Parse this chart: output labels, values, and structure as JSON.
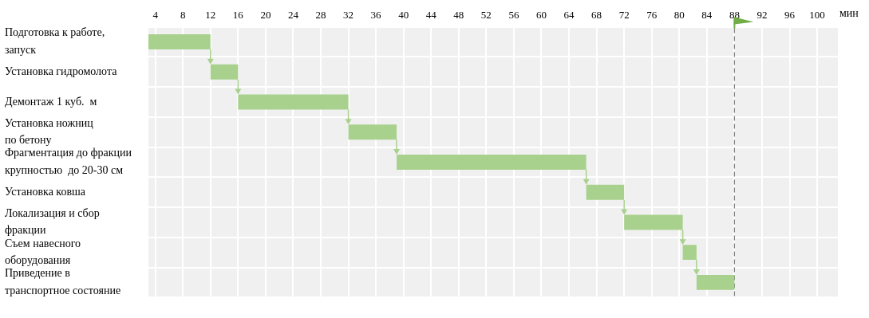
{
  "chart_data": {
    "type": "bar",
    "orientation": "horizontal",
    "xlabel": "мин",
    "categories": [
      "Подготовка к работе,\nзапуск",
      "Установка гидромолота",
      "Демонтаж 1 куб.  м",
      "Установка ножниц\nпо бетону",
      "Фрагментация до фракции\nкрупностью  до 20-30 см",
      "Установка ковша",
      "Локализация и сбор\nфракции",
      "Съем навесного\nоборудования",
      "Приведение в\nтранспортное состояние"
    ],
    "base": [
      3,
      12,
      16,
      32,
      39,
      66.5,
      72,
      80.5,
      82.5
    ],
    "values": [
      9,
      4,
      16,
      7,
      27.5,
      5.5,
      8.5,
      2,
      5.5
    ],
    "color": "#a9d18e",
    "xlim": [
      3,
      103
    ],
    "xticks": [
      4,
      8,
      12,
      16,
      20,
      24,
      28,
      32,
      36,
      40,
      44,
      48,
      52,
      56,
      60,
      64,
      68,
      72,
      76,
      80,
      84,
      88,
      92,
      96,
      100
    ],
    "grid": true,
    "ref_lines": [
      {
        "axis": "x",
        "value": 88,
        "color": "#7f7f7f",
        "line_style": "dashed"
      }
    ]
  }
}
